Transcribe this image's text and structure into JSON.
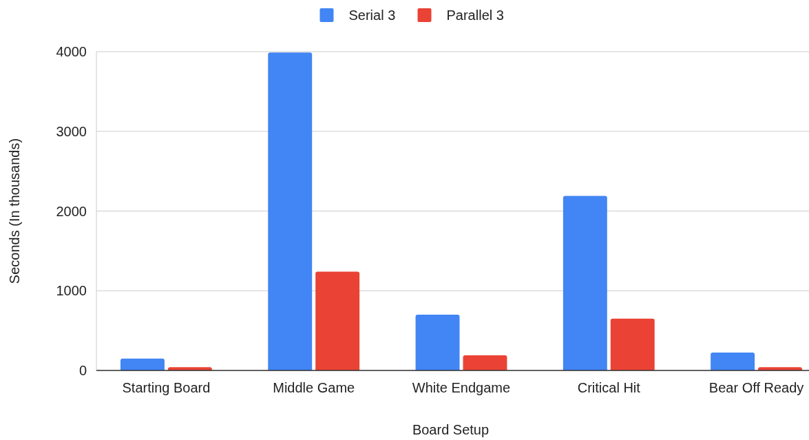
{
  "chart_data": {
    "type": "bar",
    "xlabel": "Board Setup",
    "ylabel": "Seconds (In thousands)",
    "categories": [
      "Starting Board",
      "Middle Game",
      "White Endgame",
      "Critical Hit",
      "Bear Off Ready"
    ],
    "series": [
      {
        "name": "Serial 3",
        "color": "#4285f4",
        "values": [
          150,
          3990,
          700,
          2190,
          225
        ]
      },
      {
        "name": "Parallel 3",
        "color": "#ea4335",
        "values": [
          40,
          1240,
          190,
          650,
          40
        ]
      }
    ],
    "ylim": [
      0,
      4000
    ],
    "yticks": [
      0,
      1000,
      2000,
      3000,
      4000
    ],
    "grid": "y",
    "legend": "top"
  }
}
